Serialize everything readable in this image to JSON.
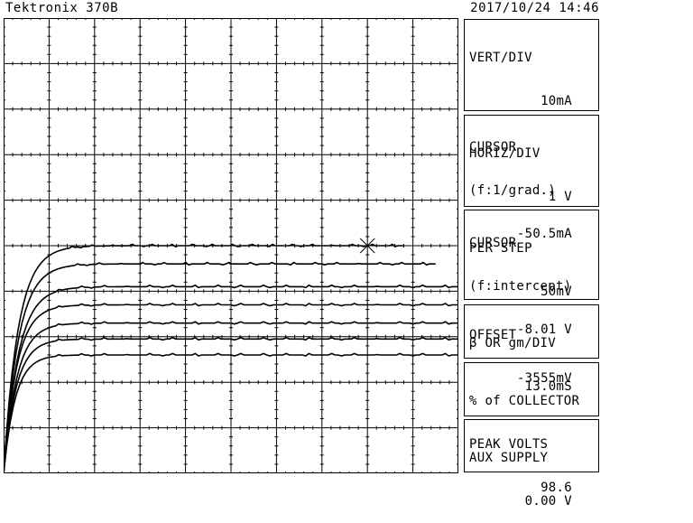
{
  "header": {
    "title": "Tektronix 370B",
    "datetime": "2017/10/24 14:46"
  },
  "panels": {
    "vert": {
      "label": "VERT/DIV",
      "value": "10mA",
      "cursor_label": "CURSOR",
      "cursor_mode": "(f:1/grad.)",
      "cursor_value": "-50.5mA"
    },
    "horiz": {
      "label": "HORIZ/DIV",
      "value": "1 V",
      "cursor_label": "CURSOR",
      "cursor_mode": "(f:intercept)",
      "cursor_value": "-8.01 V"
    },
    "step": {
      "label": "PER STEP",
      "value": "50mV",
      "offset_label": "OFFSET",
      "offset_value": "-3555mV"
    },
    "beta": {
      "label": "β OR gm/DIV",
      "value": "13.0mS"
    },
    "collector": {
      "label1": "% of COLLECTOR",
      "label2": "PEAK VOLTS",
      "value": "98.6"
    },
    "aux": {
      "label": "AUX SUPPLY",
      "value": "0.00 V"
    }
  },
  "chart_data": {
    "type": "line",
    "x_divisions": 10,
    "y_divisions": 10,
    "grid": true,
    "xlim": [
      0,
      10
    ],
    "ylim": [
      0,
      10
    ],
    "series": [
      {
        "plateau": 5.0,
        "knee": 1.0,
        "end": 8.8
      },
      {
        "plateau": 4.6,
        "knee": 1.0,
        "end": 9.5
      },
      {
        "plateau": 4.1,
        "knee": 1.0,
        "end": 10.0
      },
      {
        "plateau": 3.7,
        "knee": 0.9,
        "end": 10.0
      },
      {
        "plateau": 3.3,
        "knee": 0.9,
        "end": 10.0
      },
      {
        "plateau": 2.95,
        "knee": 0.85,
        "end": 10.0
      },
      {
        "plateau": 2.6,
        "knee": 0.8,
        "end": 10.0
      }
    ],
    "cursor": {
      "x": 8.0,
      "y": 5.0
    }
  }
}
